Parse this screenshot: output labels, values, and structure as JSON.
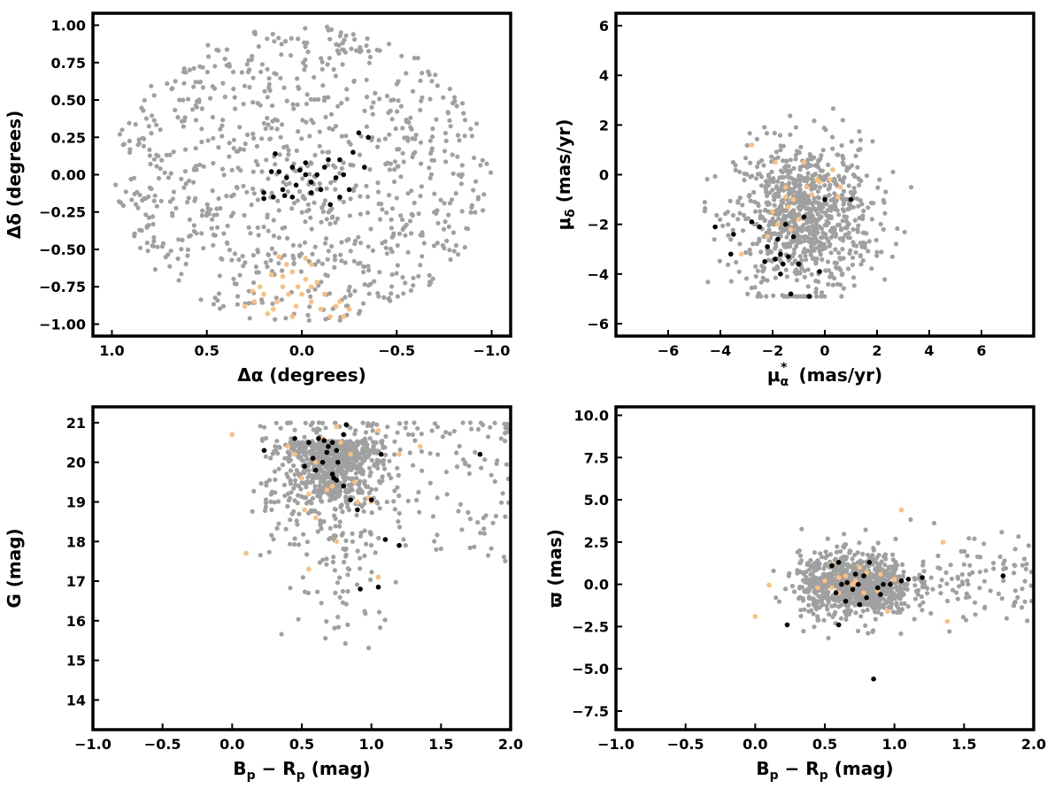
{
  "colors": {
    "field": "#a0a0a0",
    "orange": "#fdbf7a",
    "black": "#000000"
  },
  "chart_data": [
    {
      "type": "scatter",
      "xlabel": "Δα (degrees)",
      "ylabel": "Δδ (degrees)",
      "xlim": [
        1.1,
        -1.1
      ],
      "ylim": [
        -1.08,
        1.08
      ],
      "x_inverted": true,
      "xticks": [
        1.0,
        0.5,
        0.0,
        -0.5,
        -1.0
      ],
      "xtick_labels": [
        "1.0",
        "0.5",
        "0.0",
        "−0.5",
        "−1.0"
      ],
      "yticks": [
        1.0,
        0.75,
        0.5,
        0.25,
        0.0,
        -0.25,
        -0.5,
        -0.75,
        -1.0
      ],
      "ytick_labels": [
        "1.00",
        "0.75",
        "0.50",
        "0.25",
        "0.00",
        "−0.25",
        "−0.50",
        "−0.75",
        "−1.00"
      ],
      "series": [
        {
          "color": "#000000",
          "points": [
            [
              0.2,
              -0.16
            ],
            [
              0.15,
              -0.15
            ],
            [
              0.1,
              -0.1
            ],
            [
              0.03,
              -0.07
            ],
            [
              -0.02,
              0.0
            ],
            [
              -0.05,
              -0.05
            ],
            [
              0.08,
              -0.02
            ],
            [
              -0.1,
              -0.1
            ],
            [
              -0.12,
              0.05
            ],
            [
              -0.18,
              -0.02
            ],
            [
              -0.15,
              -0.2
            ],
            [
              0.05,
              0.05
            ],
            [
              -0.02,
              0.08
            ],
            [
              0.12,
              0.02
            ],
            [
              -0.2,
              -0.15
            ],
            [
              -0.22,
              0.0
            ],
            [
              -0.25,
              -0.1
            ],
            [
              -0.2,
              0.1
            ],
            [
              -0.27,
              0.15
            ],
            [
              -0.3,
              0.28
            ],
            [
              -0.35,
              0.25
            ],
            [
              0.14,
              0.14
            ],
            [
              0.2,
              -0.12
            ],
            [
              0.09,
              -0.14
            ],
            [
              -0.08,
              0.0
            ],
            [
              0.01,
              0.03
            ],
            [
              0.16,
              0.02
            ],
            [
              -0.14,
              0.1
            ],
            [
              -0.33,
              0.05
            ],
            [
              0.05,
              -0.15
            ],
            [
              -0.05,
              -0.12
            ]
          ]
        },
        {
          "color": "#fdbf7a",
          "points": [
            [
              0.12,
              -0.55
            ],
            [
              0.05,
              -0.65
            ],
            [
              -0.02,
              -0.7
            ],
            [
              0.1,
              -0.75
            ],
            [
              0.2,
              -0.8
            ],
            [
              0.15,
              -0.9
            ],
            [
              0.05,
              -0.95
            ],
            [
              -0.05,
              -0.85
            ],
            [
              -0.1,
              -0.9
            ],
            [
              -0.15,
              -0.95
            ],
            [
              0.25,
              -0.85
            ],
            [
              0.18,
              -0.93
            ],
            [
              -0.22,
              -0.95
            ],
            [
              -0.2,
              -0.85
            ],
            [
              0.0,
              -0.8
            ],
            [
              0.08,
              -0.6
            ],
            [
              -0.05,
              -0.6
            ],
            [
              0.1,
              -0.68
            ],
            [
              0.02,
              -0.75
            ],
            [
              -0.08,
              -0.72
            ],
            [
              -0.12,
              -0.8
            ],
            [
              0.22,
              -0.75
            ],
            [
              0.3,
              -0.88
            ],
            [
              0.26,
              -0.78
            ],
            [
              -0.25,
              -0.9
            ],
            [
              -0.05,
              -0.75
            ],
            [
              0.13,
              -0.85
            ],
            [
              0.03,
              -0.88
            ],
            [
              -0.18,
              -0.88
            ],
            [
              0.07,
              -0.8
            ],
            [
              0.16,
              -0.67
            ],
            [
              -0.02,
              -0.56
            ]
          ]
        }
      ]
    },
    {
      "type": "scatter",
      "xlabel": "μ*α (mas/yr)",
      "ylabel": "μδ (mas/yr)",
      "xlim": [
        -8,
        8
      ],
      "ylim": [
        -6.5,
        6.5
      ],
      "xticks": [
        -6,
        -4,
        -2,
        0,
        2,
        4,
        6
      ],
      "xtick_labels": [
        "−6",
        "−4",
        "−2",
        "0",
        "2",
        "4",
        "6"
      ],
      "yticks": [
        6,
        4,
        2,
        0,
        -2,
        -4,
        -6
      ],
      "ytick_labels": [
        "6",
        "4",
        "2",
        "0",
        "−2",
        "−4",
        "−6"
      ],
      "series": [
        {
          "color": "#000000",
          "points": [
            [
              -4.2,
              -2.1
            ],
            [
              -3.5,
              -2.4
            ],
            [
              -3.6,
              -3.2
            ],
            [
              -2.5,
              -2.1
            ],
            [
              -2.2,
              -2.9
            ],
            [
              -2.3,
              -3.5
            ],
            [
              -1.8,
              -2.6
            ],
            [
              -1.7,
              -3.2
            ],
            [
              -1.6,
              -3.6
            ],
            [
              -1.4,
              -3.3
            ],
            [
              -1.3,
              -4.8
            ],
            [
              -1.0,
              -3.6
            ],
            [
              -0.8,
              -1.7
            ],
            [
              -1.5,
              -2.0
            ],
            [
              -0.6,
              -4.9
            ],
            [
              0.0,
              -1.0
            ],
            [
              1.0,
              -1.0
            ],
            [
              -2.0,
              -1.5
            ],
            [
              -1.7,
              -4.0
            ],
            [
              -1.2,
              -2.5
            ],
            [
              -0.2,
              -3.9
            ],
            [
              -2.8,
              -1.9
            ],
            [
              -1.9,
              -3.4
            ]
          ]
        },
        {
          "color": "#fdbf7a",
          "points": [
            [
              -2.8,
              1.2
            ],
            [
              -1.9,
              0.5
            ],
            [
              -0.8,
              0.5
            ],
            [
              -1.5,
              -0.5
            ],
            [
              -0.2,
              -0.3
            ],
            [
              0.2,
              -0.2
            ],
            [
              0.6,
              -0.5
            ],
            [
              -1.4,
              -1.3
            ],
            [
              -1.0,
              -1.8
            ],
            [
              -1.8,
              -2.0
            ],
            [
              -2.2,
              -2.5
            ],
            [
              -3.2,
              -3.2
            ],
            [
              -0.5,
              -0.8
            ],
            [
              -1.2,
              -1.0
            ],
            [
              0.3,
              0.2
            ],
            [
              -0.3,
              -0.2
            ],
            [
              -1.5,
              -0.9
            ],
            [
              -2.0,
              -1.5
            ],
            [
              -0.7,
              -0.5
            ],
            [
              -1.3,
              -2.2
            ],
            [
              0.5,
              -0.9
            ]
          ]
        }
      ]
    },
    {
      "type": "scatter",
      "xlabel": "Bp − Rp (mag)",
      "ylabel": "G (mag)",
      "xlim": [
        -1.0,
        2.0
      ],
      "ylim": [
        13.25,
        21.4
      ],
      "xticks": [
        -1.0,
        -0.5,
        0.0,
        0.5,
        1.0,
        1.5,
        2.0
      ],
      "xtick_labels": [
        "−1.0",
        "−0.5",
        "0.0",
        "0.5",
        "1.0",
        "1.5",
        "2.0"
      ],
      "yticks": [
        21,
        20,
        19,
        18,
        17,
        16,
        15,
        14
      ],
      "ytick_labels": [
        "21",
        "20",
        "19",
        "18",
        "17",
        "16",
        "15",
        "14"
      ],
      "series": [
        {
          "color": "#fdbf7a",
          "points": [
            [
              0.0,
              20.7
            ],
            [
              0.1,
              17.7
            ],
            [
              0.55,
              17.3
            ],
            [
              0.6,
              18.6
            ],
            [
              0.75,
              18.0
            ],
            [
              0.9,
              19.0
            ],
            [
              1.05,
              17.1
            ],
            [
              0.88,
              19.5
            ],
            [
              0.5,
              19.6
            ],
            [
              0.65,
              20.6
            ],
            [
              0.75,
              20.9
            ],
            [
              1.05,
              20.8
            ],
            [
              1.35,
              20.4
            ],
            [
              0.45,
              20.2
            ],
            [
              0.55,
              19.2
            ],
            [
              0.85,
              20.2
            ],
            [
              0.6,
              20.0
            ],
            [
              0.72,
              19.4
            ],
            [
              0.98,
              19.1
            ],
            [
              0.4,
              20.4
            ],
            [
              1.2,
              20.2
            ],
            [
              0.78,
              20.5
            ],
            [
              0.68,
              19.3
            ],
            [
              1.0,
              19.0
            ],
            [
              0.52,
              18.8
            ]
          ]
        },
        {
          "color": "#000000",
          "points": [
            [
              0.23,
              20.3
            ],
            [
              0.45,
              20.6
            ],
            [
              0.55,
              20.5
            ],
            [
              0.62,
              20.6
            ],
            [
              0.72,
              20.5
            ],
            [
              0.82,
              20.95
            ],
            [
              0.8,
              20.7
            ],
            [
              0.75,
              20.3
            ],
            [
              0.65,
              20.0
            ],
            [
              0.6,
              19.8
            ],
            [
              0.72,
              19.7
            ],
            [
              0.75,
              19.55
            ],
            [
              0.8,
              19.4
            ],
            [
              0.85,
              19.05
            ],
            [
              1.0,
              19.05
            ],
            [
              0.9,
              18.8
            ],
            [
              1.1,
              18.05
            ],
            [
              1.2,
              17.9
            ],
            [
              0.92,
              16.8
            ],
            [
              1.05,
              16.85
            ],
            [
              1.78,
              20.2
            ],
            [
              1.07,
              20.2
            ],
            [
              0.69,
              20.4
            ],
            [
              0.58,
              20.1
            ],
            [
              0.68,
              20.25
            ],
            [
              0.76,
              20.0
            ],
            [
              0.66,
              20.55
            ],
            [
              0.52,
              19.9
            ],
            [
              0.73,
              19.6
            ]
          ]
        }
      ]
    },
    {
      "type": "scatter",
      "xlabel": "Bp − Rp (mag)",
      "ylabel": "ϖ (mas)",
      "xlim": [
        -1.0,
        2.0
      ],
      "ylim": [
        -8.6,
        10.5
      ],
      "xticks": [
        -1.0,
        -0.5,
        0.0,
        0.5,
        1.0,
        1.5,
        2.0
      ],
      "xtick_labels": [
        "−1.0",
        "−0.5",
        "0.0",
        "0.5",
        "1.0",
        "1.5",
        "2.0"
      ],
      "yticks": [
        10.0,
        7.5,
        5.0,
        2.5,
        0.0,
        -2.5,
        -5.0,
        -7.5
      ],
      "ytick_labels": [
        "10.0",
        "7.5",
        "5.0",
        "2.5",
        "0.0",
        "−2.5",
        "−5.0",
        "−7.5"
      ],
      "series": [
        {
          "color": "#fdbf7a",
          "points": [
            [
              0.0,
              -1.9
            ],
            [
              0.1,
              -0.05
            ],
            [
              0.55,
              1.2
            ],
            [
              0.6,
              0.4
            ],
            [
              0.75,
              1.0
            ],
            [
              0.9,
              0.6
            ],
            [
              1.05,
              4.4
            ],
            [
              1.35,
              2.5
            ],
            [
              1.38,
              -2.2
            ],
            [
              0.95,
              -1.6
            ],
            [
              0.45,
              -0.2
            ],
            [
              0.65,
              0.5
            ],
            [
              0.7,
              0.0
            ],
            [
              0.8,
              0.7
            ],
            [
              0.6,
              -0.5
            ],
            [
              0.5,
              0.2
            ],
            [
              0.88,
              -0.4
            ],
            [
              0.78,
              -0.5
            ],
            [
              1.0,
              0.3
            ],
            [
              0.72,
              0.2
            ],
            [
              0.55,
              -0.2
            ],
            [
              0.82,
              1.3
            ]
          ]
        },
        {
          "color": "#000000",
          "points": [
            [
              0.23,
              -2.4
            ],
            [
              0.55,
              1.1
            ],
            [
              0.6,
              1.3
            ],
            [
              0.62,
              0.0
            ],
            [
              0.65,
              -1.0
            ],
            [
              0.72,
              0.6
            ],
            [
              0.78,
              0.5
            ],
            [
              0.82,
              1.3
            ],
            [
              0.85,
              -5.6
            ],
            [
              0.6,
              -2.4
            ],
            [
              0.92,
              0.0
            ],
            [
              0.97,
              0.0
            ],
            [
              1.05,
              0.2
            ],
            [
              1.1,
              0.3
            ],
            [
              1.2,
              0.4
            ],
            [
              1.78,
              0.5
            ],
            [
              0.75,
              -1.2
            ],
            [
              0.8,
              -0.8
            ],
            [
              0.88,
              -0.2
            ],
            [
              0.7,
              -0.3
            ],
            [
              0.58,
              -0.5
            ],
            [
              0.66,
              0.1
            ],
            [
              0.74,
              0.0
            ],
            [
              0.9,
              -0.6
            ]
          ]
        }
      ]
    }
  ]
}
